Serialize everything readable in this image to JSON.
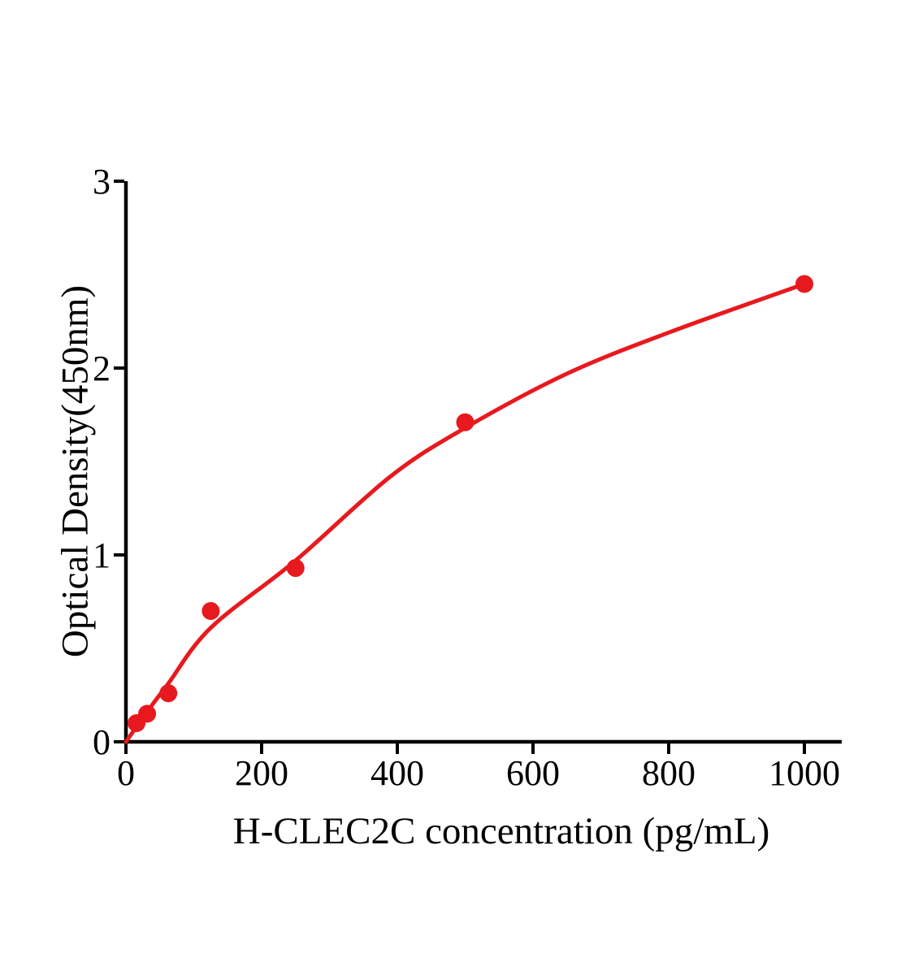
{
  "chart_data": {
    "type": "scatter",
    "title": "",
    "xlabel": "H-CLEC2C concentration (pg/mL)",
    "ylabel": "Optical Density(450nm)",
    "xlim": [
      0,
      1055
    ],
    "ylim": [
      0,
      3
    ],
    "x_ticks": [
      0,
      200,
      400,
      600,
      800,
      1000
    ],
    "y_ticks": [
      0,
      1,
      2,
      3
    ],
    "grid": false,
    "legend": "none",
    "series": [
      {
        "name": "standard-points",
        "type": "scatter",
        "marker": "circle",
        "color": "#e8191e",
        "x": [
          15.6,
          31.2,
          62.5,
          125,
          250,
          500,
          1000
        ],
        "y": [
          0.1,
          0.15,
          0.26,
          0.7,
          0.93,
          1.71,
          2.45
        ]
      },
      {
        "name": "fitted-curve",
        "type": "line",
        "color": "#e8191e",
        "points": [
          [
            0,
            0
          ],
          [
            31,
            0.16
          ],
          [
            62,
            0.31
          ],
          [
            125,
            0.61
          ],
          [
            250,
            0.97
          ],
          [
            390,
            1.42
          ],
          [
            500,
            1.68
          ],
          [
            650,
            1.97
          ],
          [
            800,
            2.19
          ],
          [
            1000,
            2.45
          ]
        ]
      }
    ],
    "colors": {
      "axis": "#000000",
      "curve": "#e8191e",
      "point": "#e8191e",
      "background": "#ffffff"
    }
  }
}
